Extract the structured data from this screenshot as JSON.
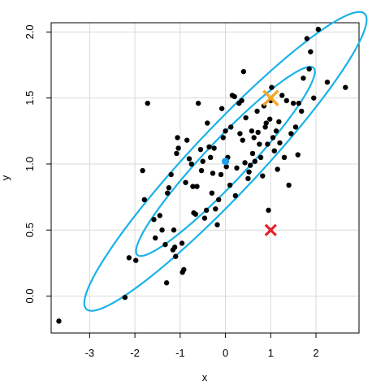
{
  "chart_data": {
    "type": "scatter",
    "title": "",
    "xlabel": "x",
    "ylabel": "y",
    "xlim": [
      -3.85,
      2.95
    ],
    "ylim": [
      -0.28,
      2.07
    ],
    "x_ticks": [
      -3,
      -2,
      -1,
      0,
      1,
      2
    ],
    "x_tick_labels": [
      "-3",
      "-2",
      "-1",
      "0",
      "1",
      "2"
    ],
    "y_ticks": [
      0.0,
      0.5,
      1.0,
      1.5,
      2.0
    ],
    "y_tick_labels": [
      "0.0",
      "0.5",
      "1.0",
      "1.5",
      "2.0"
    ],
    "grid": true,
    "colors": {
      "points": "#000000",
      "ellipse": "#1ab2e8",
      "center": "#1e9fe8",
      "orange_marker": "#f5a623",
      "red_marker": "#e8202a",
      "grid": "#d9d9d9"
    },
    "points": [
      [
        -3.68,
        -0.19
      ],
      [
        -2.22,
        -0.01
      ],
      [
        -2.13,
        0.29
      ],
      [
        -1.98,
        0.27
      ],
      [
        -1.83,
        0.95
      ],
      [
        -1.79,
        0.73
      ],
      [
        -1.72,
        1.46
      ],
      [
        -1.58,
        0.58
      ],
      [
        -1.55,
        0.44
      ],
      [
        -1.45,
        0.61
      ],
      [
        -1.4,
        0.5
      ],
      [
        -1.33,
        0.39
      ],
      [
        -1.3,
        0.1
      ],
      [
        -1.28,
        0.78
      ],
      [
        -1.25,
        0.82
      ],
      [
        -1.2,
        0.92
      ],
      [
        -1.16,
        0.35
      ],
      [
        -1.14,
        0.5
      ],
      [
        -1.12,
        0.37
      ],
      [
        -1.1,
        0.3
      ],
      [
        -1.08,
        1.08
      ],
      [
        -1.06,
        1.2
      ],
      [
        -1.04,
        1.12
      ],
      [
        -0.96,
        0.4
      ],
      [
        -0.95,
        0.18
      ],
      [
        -0.92,
        0.2
      ],
      [
        -0.88,
        0.86
      ],
      [
        -0.85,
        1.18
      ],
      [
        -0.8,
        1.04
      ],
      [
        -0.75,
        1.0
      ],
      [
        -0.72,
        0.83
      ],
      [
        -0.7,
        0.63
      ],
      [
        -0.66,
        0.62
      ],
      [
        -0.63,
        0.83
      ],
      [
        -0.6,
        1.46
      ],
      [
        -0.55,
        1.11
      ],
      [
        -0.53,
        0.95
      ],
      [
        -0.5,
        1.02
      ],
      [
        -0.46,
        0.59
      ],
      [
        -0.42,
        0.65
      ],
      [
        -0.4,
        1.31
      ],
      [
        -0.36,
        1.13
      ],
      [
        -0.33,
        1.05
      ],
      [
        -0.3,
        0.78
      ],
      [
        -0.28,
        0.93
      ],
      [
        -0.25,
        1.12
      ],
      [
        -0.22,
        0.66
      ],
      [
        -0.18,
        0.54
      ],
      [
        -0.15,
        0.73
      ],
      [
        -0.1,
        0.92
      ],
      [
        -0.08,
        1.42
      ],
      [
        -0.05,
        1.2
      ],
      [
        0.0,
        1.25
      ],
      [
        0.02,
        0.98
      ],
      [
        0.05,
        1.05
      ],
      [
        0.1,
        0.84
      ],
      [
        0.12,
        1.28
      ],
      [
        0.15,
        1.52
      ],
      [
        0.2,
        1.51
      ],
      [
        0.22,
        0.76
      ],
      [
        0.25,
        0.97
      ],
      [
        0.3,
        1.46
      ],
      [
        0.32,
        1.23
      ],
      [
        0.36,
        1.48
      ],
      [
        0.38,
        1.18
      ],
      [
        0.4,
        1.7
      ],
      [
        0.43,
        1.01
      ],
      [
        0.45,
        1.35
      ],
      [
        0.5,
        0.89
      ],
      [
        0.52,
        0.94
      ],
      [
        0.55,
        0.99
      ],
      [
        0.58,
        1.25
      ],
      [
        0.6,
        1.08
      ],
      [
        0.63,
        1.2
      ],
      [
        0.65,
        1.02
      ],
      [
        0.7,
        1.4
      ],
      [
        0.72,
        1.24
      ],
      [
        0.75,
        1.15
      ],
      [
        0.78,
        1.05
      ],
      [
        0.82,
        0.91
      ],
      [
        0.85,
        1.44
      ],
      [
        0.88,
        1.28
      ],
      [
        0.9,
        1.31
      ],
      [
        0.93,
        1.15
      ],
      [
        0.95,
        0.65
      ],
      [
        0.98,
        1.34
      ],
      [
        1.0,
        1.48
      ],
      [
        1.02,
        1.58
      ],
      [
        1.05,
        1.2
      ],
      [
        1.08,
        1.1
      ],
      [
        1.12,
        1.25
      ],
      [
        1.15,
        0.96
      ],
      [
        1.18,
        1.32
      ],
      [
        1.2,
        1.16
      ],
      [
        1.25,
        1.52
      ],
      [
        1.3,
        1.05
      ],
      [
        1.35,
        1.48
      ],
      [
        1.4,
        0.84
      ],
      [
        1.45,
        1.23
      ],
      [
        1.5,
        1.46
      ],
      [
        1.55,
        1.28
      ],
      [
        1.6,
        1.07
      ],
      [
        1.62,
        1.46
      ],
      [
        1.68,
        1.4
      ],
      [
        1.72,
        1.65
      ],
      [
        1.8,
        1.95
      ],
      [
        1.85,
        1.72
      ],
      [
        1.88,
        1.85
      ],
      [
        1.95,
        1.5
      ],
      [
        2.05,
        2.02
      ],
      [
        2.25,
        1.62
      ],
      [
        2.65,
        1.58
      ]
    ],
    "center": [
      0.0,
      1.02
    ],
    "orange_x": [
      1.0,
      1.5
    ],
    "red_x": [
      1.0,
      0.5
    ],
    "inner_ellipse": {
      "center": [
        0.0,
        1.02
      ],
      "semi_axis_a": 2.09,
      "semi_axis_b": 0.215,
      "angle_deg": 19.2
    },
    "outer_ellipse": {
      "center": [
        0.0,
        1.02
      ],
      "semi_axis_a": 3.3,
      "semi_axis_b": 0.34,
      "angle_deg": 19.2
    }
  }
}
